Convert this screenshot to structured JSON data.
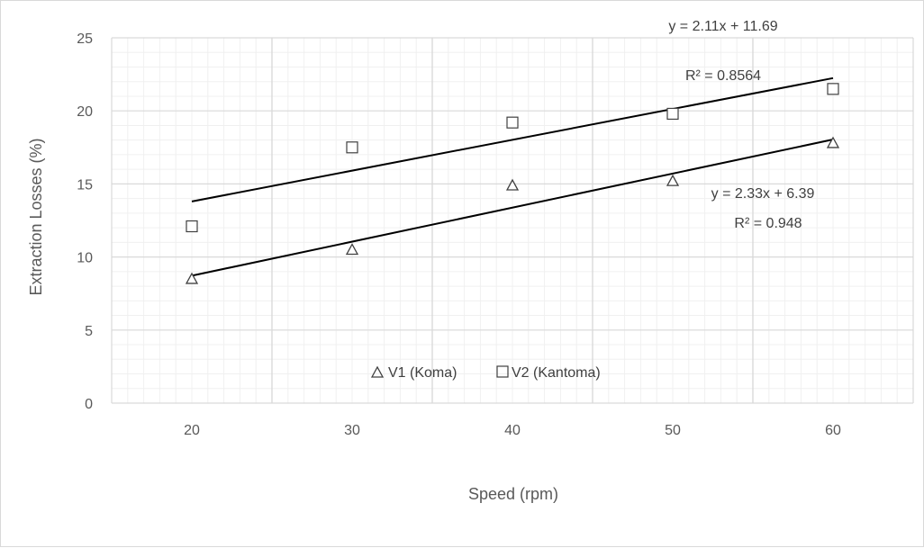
{
  "chart_data": {
    "type": "scatter",
    "xlabel": "Speed (rpm)",
    "ylabel": "Extraction Losses (%)",
    "xlim": [
      15,
      65
    ],
    "ylim": [
      0,
      25
    ],
    "x_ticks": [
      20,
      30,
      40,
      50,
      60
    ],
    "y_ticks": [
      0,
      5,
      10,
      15,
      20,
      25
    ],
    "grid": true,
    "legend_position": "bottom-center",
    "series": [
      {
        "name": "V1 (Koma)",
        "marker": "triangle",
        "x": [
          20,
          30,
          40,
          50,
          60
        ],
        "y": [
          8.5,
          10.5,
          14.9,
          15.2,
          17.8
        ],
        "trendline": {
          "type": "linear",
          "equation": "y = 2.33x + 6.39",
          "r2": "R² = 0.948"
        }
      },
      {
        "name": "V2 (Kantoma)",
        "marker": "square",
        "x": [
          20,
          30,
          40,
          50,
          60
        ],
        "y": [
          12.1,
          17.5,
          19.2,
          19.8,
          21.5
        ],
        "trendline": {
          "type": "linear",
          "equation": "y = 2.11x + 11.69",
          "r2": "R² = 0.8564"
        }
      }
    ],
    "colors": {
      "axis_text": "#595959",
      "grid_major": "#d9d9d9",
      "grid_minor": "#f0f0f0",
      "marker": "#404040",
      "trendline": "#000000"
    }
  }
}
